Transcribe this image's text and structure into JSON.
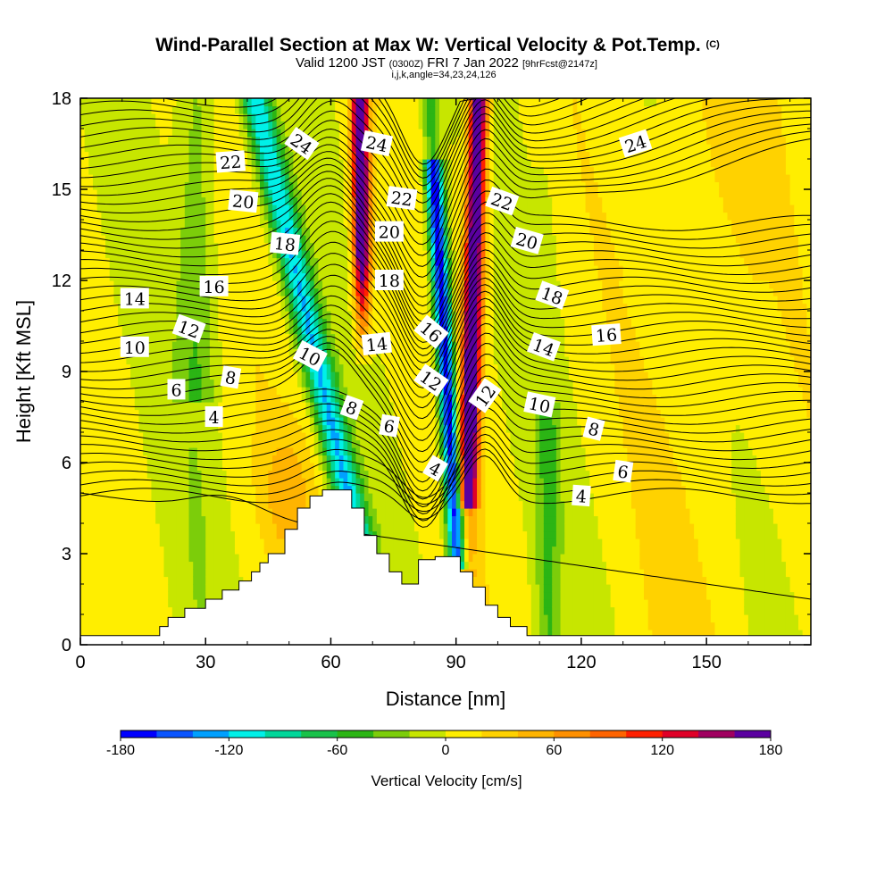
{
  "chart_data": {
    "type": "heatmap",
    "title": "Wind-Parallel Section at Max W: Vertical Velocity & Pot.Temp.",
    "title_tag": "(C)",
    "subtitle_prefix": "Valid 1200 JST",
    "subtitle_utc": "(0300Z)",
    "subtitle_date": "FRI 7 Jan 2022",
    "subtitle_fcst": "[9hrFcst@2147z]",
    "indices_line": "i,j,k,angle=34,23,24,126",
    "xlabel": "Distance [nm]",
    "ylabel": "Height [Kft MSL]",
    "xlim": [
      0,
      175
    ],
    "ylim": [
      0,
      18
    ],
    "x_ticks": [
      "0",
      "30",
      "60",
      "90",
      "120",
      "150"
    ],
    "x_tick_values": [
      0,
      30,
      60,
      90,
      120,
      150
    ],
    "y_ticks": [
      "0",
      "3",
      "6",
      "9",
      "12",
      "15",
      "18"
    ],
    "y_tick_values": [
      0,
      3,
      6,
      9,
      12,
      15,
      18
    ],
    "colorbar": {
      "label": "Vertical Velocity [cm/s]",
      "min": -180,
      "max": 180,
      "tick_labels": [
        "-180",
        "-120",
        "-60",
        "0",
        "60",
        "120",
        "180"
      ],
      "tick_values": [
        -180,
        -120,
        -60,
        0,
        60,
        120,
        180
      ],
      "colors": [
        "#0000ff",
        "#0a55ff",
        "#00a0ff",
        "#00f0e8",
        "#00d79a",
        "#19c24a",
        "#2bb514",
        "#7ccd0a",
        "#c7e600",
        "#ffee00",
        "#ffd200",
        "#ffb400",
        "#ff9000",
        "#ff6400",
        "#ff2000",
        "#e00028",
        "#a00060",
        "#5a00a0"
      ]
    },
    "terrain": [
      [
        0,
        0.3
      ],
      [
        19,
        0.3
      ],
      [
        19,
        0.6
      ],
      [
        21,
        0.6
      ],
      [
        21,
        0.9
      ],
      [
        25,
        0.9
      ],
      [
        25,
        1.2
      ],
      [
        30,
        1.2
      ],
      [
        30,
        1.5
      ],
      [
        34,
        1.5
      ],
      [
        34,
        1.8
      ],
      [
        38,
        1.8
      ],
      [
        38,
        2.1
      ],
      [
        41,
        2.1
      ],
      [
        41,
        2.4
      ],
      [
        43,
        2.4
      ],
      [
        43,
        2.7
      ],
      [
        45,
        2.7
      ],
      [
        45,
        3.0
      ],
      [
        49,
        3.0
      ],
      [
        49,
        3.8
      ],
      [
        52,
        3.8
      ],
      [
        52,
        4.5
      ],
      [
        55,
        4.5
      ],
      [
        55,
        4.9
      ],
      [
        58,
        4.9
      ],
      [
        58,
        5.1
      ],
      [
        65,
        5.1
      ],
      [
        65,
        4.5
      ],
      [
        68,
        4.5
      ],
      [
        68,
        3.6
      ],
      [
        71,
        3.6
      ],
      [
        71,
        3.0
      ],
      [
        74,
        3.0
      ],
      [
        74,
        2.4
      ],
      [
        77,
        2.4
      ],
      [
        77,
        2.0
      ],
      [
        81,
        2.0
      ],
      [
        81,
        2.8
      ],
      [
        85,
        2.8
      ],
      [
        85,
        2.9
      ],
      [
        91,
        2.9
      ],
      [
        91,
        2.4
      ],
      [
        94,
        2.4
      ],
      [
        94,
        1.9
      ],
      [
        97,
        1.9
      ],
      [
        97,
        1.3
      ],
      [
        100,
        1.3
      ],
      [
        100,
        0.9
      ],
      [
        103,
        0.9
      ],
      [
        103,
        0.6
      ],
      [
        107,
        0.6
      ],
      [
        107,
        0.3
      ],
      [
        175,
        0.3
      ]
    ],
    "contour_labels": [
      {
        "x": 53,
        "y": 16.5,
        "value": "24",
        "angle": 35
      },
      {
        "x": 71,
        "y": 16.5,
        "value": "24",
        "angle": 12
      },
      {
        "x": 133,
        "y": 16.5,
        "value": "24",
        "angle": -18
      },
      {
        "x": 36,
        "y": 15.9,
        "value": "22",
        "angle": -4
      },
      {
        "x": 77,
        "y": 14.7,
        "value": "22",
        "angle": 8
      },
      {
        "x": 101,
        "y": 14.6,
        "value": "22",
        "angle": 20
      },
      {
        "x": 39,
        "y": 14.6,
        "value": "20",
        "angle": 6
      },
      {
        "x": 74,
        "y": 13.6,
        "value": "20",
        "angle": 0
      },
      {
        "x": 107,
        "y": 13.3,
        "value": "20",
        "angle": 16
      },
      {
        "x": 49,
        "y": 13.2,
        "value": "18",
        "angle": 6
      },
      {
        "x": 74,
        "y": 12.0,
        "value": "18",
        "angle": 0
      },
      {
        "x": 113,
        "y": 11.5,
        "value": "18",
        "angle": 20
      },
      {
        "x": 32,
        "y": 11.8,
        "value": "16",
        "angle": 0
      },
      {
        "x": 84,
        "y": 10.3,
        "value": "16",
        "angle": 40
      },
      {
        "x": 126,
        "y": 10.2,
        "value": "16",
        "angle": -4
      },
      {
        "x": 13,
        "y": 11.4,
        "value": "14",
        "angle": 0
      },
      {
        "x": 71,
        "y": 9.9,
        "value": "14",
        "angle": -6
      },
      {
        "x": 111,
        "y": 9.8,
        "value": "14",
        "angle": 20
      },
      {
        "x": 26,
        "y": 10.4,
        "value": "12",
        "angle": 20
      },
      {
        "x": 84,
        "y": 8.7,
        "value": "12",
        "angle": 35
      },
      {
        "x": 97,
        "y": 8.2,
        "value": "12",
        "angle": -55
      },
      {
        "x": 13,
        "y": 9.8,
        "value": "10",
        "angle": 0
      },
      {
        "x": 55,
        "y": 9.5,
        "value": "10",
        "angle": 28
      },
      {
        "x": 110,
        "y": 7.9,
        "value": "10",
        "angle": 12
      },
      {
        "x": 36,
        "y": 8.8,
        "value": "8",
        "angle": 10
      },
      {
        "x": 65,
        "y": 7.8,
        "value": "8",
        "angle": 20
      },
      {
        "x": 123,
        "y": 7.1,
        "value": "8",
        "angle": 14
      },
      {
        "x": 23,
        "y": 8.4,
        "value": "6",
        "angle": 0
      },
      {
        "x": 74,
        "y": 7.2,
        "value": "6",
        "angle": 10
      },
      {
        "x": 130,
        "y": 5.7,
        "value": "6",
        "angle": 8
      },
      {
        "x": 32,
        "y": 7.5,
        "value": "4",
        "angle": 0
      },
      {
        "x": 85,
        "y": 5.8,
        "value": "4",
        "angle": 30
      },
      {
        "x": 120,
        "y": 4.9,
        "value": "4",
        "angle": 4
      }
    ],
    "grid": false,
    "legend": "colorbar-bottom"
  }
}
